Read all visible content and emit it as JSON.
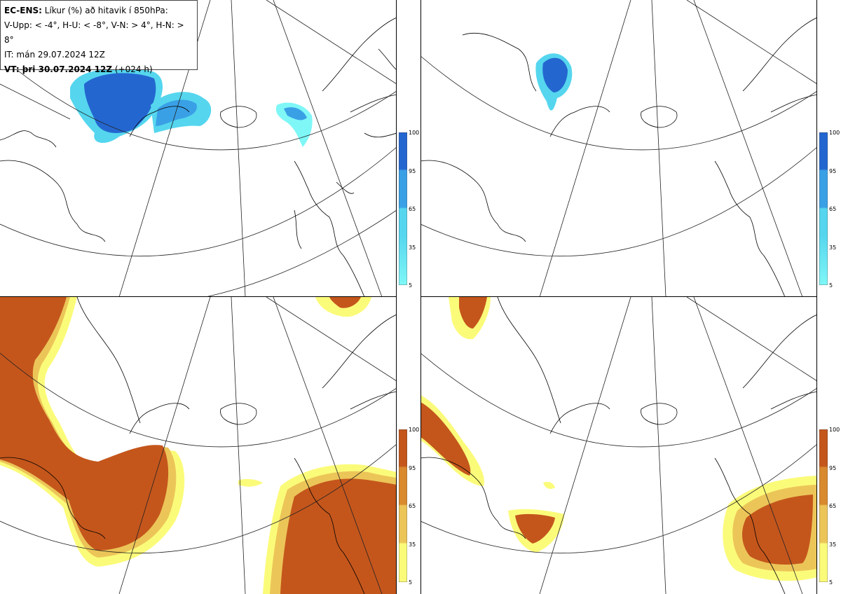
{
  "legend": {
    "line1_bold": "EC-ENS:",
    "line1_rest": " Líkur (%) að hitavik í 850hPa:",
    "line2": "V-Upp: < -4°, H-U: < -8°, V-N: > 4°, H-N: > 8°",
    "line3": "IT: mán 29.07.2024 12Z",
    "line4_bold": "VT: þri 30.07.2024 12Z",
    "line4_rest": " (+024 h)"
  },
  "colorbar_ticks": [
    "100",
    "95",
    "65",
    "35",
    "5"
  ],
  "colors": {
    "cold_scale": [
      "#7ff7f7",
      "#55d6ee",
      "#3aa0e6",
      "#2466d0"
    ],
    "warm_scale": [
      "#fbfb7a",
      "#ecc558",
      "#d9892e",
      "#c4561c"
    ],
    "coast": "#000000",
    "grid": "#222222"
  },
  "panels": [
    {
      "id": "V-Upp",
      "scale": "cold"
    },
    {
      "id": "H-U",
      "scale": "cold"
    },
    {
      "id": "V-N",
      "scale": "warm"
    },
    {
      "id": "H-N",
      "scale": "warm"
    }
  ]
}
